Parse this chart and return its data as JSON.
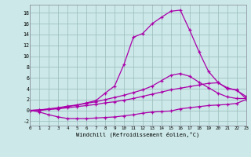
{
  "xlabel": "Windchill (Refroidissement éolien,°C)",
  "bg_color": "#cce8e8",
  "line_color": "#aa00aa",
  "grid_color": "#99bbbb",
  "series": [
    [
      0,
      -0.3,
      -0.8,
      -1.2,
      -1.5,
      -1.5,
      -1.5,
      -1.4,
      -1.3,
      -1.2,
      -1.0,
      -0.8,
      -0.5,
      -0.3,
      -0.2,
      -0.1,
      0.3,
      0.5,
      0.7,
      0.9,
      1.0,
      1.1,
      1.3,
      2.0
    ],
    [
      0,
      0.1,
      0.2,
      0.3,
      0.5,
      0.7,
      0.9,
      1.1,
      1.4,
      1.6,
      1.9,
      2.2,
      2.6,
      3.0,
      3.4,
      3.8,
      4.1,
      4.4,
      4.7,
      5.0,
      5.1,
      4.2,
      3.7,
      2.6
    ],
    [
      0,
      0.1,
      0.3,
      0.5,
      0.8,
      1.0,
      1.3,
      1.6,
      2.0,
      2.4,
      2.8,
      3.3,
      3.8,
      4.5,
      5.5,
      6.5,
      6.8,
      6.3,
      5.2,
      4.2,
      3.2,
      2.5,
      2.2,
      2.2
    ],
    [
      0,
      0.0,
      0.2,
      0.4,
      0.7,
      1.0,
      1.4,
      1.8,
      3.2,
      4.5,
      8.5,
      13.5,
      14.2,
      16.0,
      17.2,
      18.3,
      18.5,
      14.8,
      10.8,
      7.2,
      5.2,
      4.0,
      3.8,
      2.2
    ]
  ],
  "xlim": [
    0,
    23
  ],
  "ylim": [
    -2.8,
    19.5
  ],
  "yticks": [
    -2,
    0,
    2,
    4,
    6,
    8,
    10,
    12,
    14,
    16,
    18
  ],
  "xticks": [
    0,
    1,
    2,
    3,
    4,
    5,
    6,
    7,
    8,
    9,
    10,
    11,
    12,
    13,
    14,
    15,
    16,
    17,
    18,
    19,
    20,
    21,
    22,
    23
  ],
  "xtick_labels": [
    "0",
    "1",
    "2",
    "3",
    "4",
    "5",
    "6",
    "7",
    "8",
    "9",
    "10",
    "11",
    "12",
    "13",
    "14",
    "15",
    "16",
    "17",
    "18",
    "19",
    "20",
    "21",
    "22",
    "23"
  ]
}
